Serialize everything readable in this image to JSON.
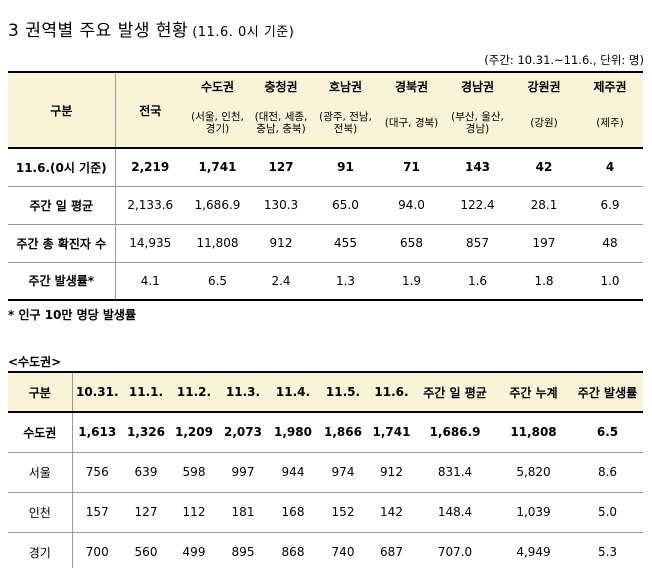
{
  "title": {
    "main": "3 권역별 주요 발생 현황",
    "sub": "(11.6. 0시 기준)"
  },
  "unit_note": "(주간: 10.31.~11.6., 단위: 명)",
  "table1": {
    "corner": "구분",
    "headers": [
      "전국",
      "수도권",
      "충청권",
      "호남권",
      "경북권",
      "경남권",
      "강원권",
      "제주권"
    ],
    "subheaders": [
      "",
      "(서울, 인천, 경기)",
      "(대전, 세종, 충남, 충북)",
      "(광주, 전남, 전북)",
      "(대구, 경북)",
      "(부산, 울산, 경남)",
      "(강원)",
      "(제주)"
    ],
    "rows": [
      {
        "label": "11.6.(0시 기준)",
        "values": [
          "2,219",
          "1,741",
          "127",
          "91",
          "71",
          "143",
          "42",
          "4"
        ]
      },
      {
        "label": "주간 일 평균",
        "values": [
          "2,133.6",
          "1,686.9",
          "130.3",
          "65.0",
          "94.0",
          "122.4",
          "28.1",
          "6.9"
        ]
      },
      {
        "label": "주간 총 확진자 수",
        "values": [
          "14,935",
          "11,808",
          "912",
          "455",
          "658",
          "857",
          "197",
          "48"
        ]
      },
      {
        "label": "주간 발생률*",
        "values": [
          "4.1",
          "6.5",
          "2.4",
          "1.3",
          "1.9",
          "1.6",
          "1.8",
          "1.0"
        ]
      }
    ]
  },
  "footnote": "* 인구 10만 명당 발생률",
  "section_label": "<수도권>",
  "table2": {
    "headers": [
      "구분",
      "10.31.",
      "11.1.",
      "11.2.",
      "11.3.",
      "11.4.",
      "11.5.",
      "11.6.",
      "주간 일 평균",
      "주간 누계",
      "주간 발생률"
    ],
    "rows": [
      {
        "label": "수도권",
        "values": [
          "1,613",
          "1,326",
          "1,209",
          "2,073",
          "1,980",
          "1,866",
          "1,741",
          "1,686.9",
          "11,808",
          "6.5"
        ]
      },
      {
        "label": "서울",
        "values": [
          "756",
          "639",
          "598",
          "997",
          "944",
          "974",
          "912",
          "831.4",
          "5,820",
          "8.6"
        ]
      },
      {
        "label": "인천",
        "values": [
          "157",
          "127",
          "112",
          "181",
          "168",
          "152",
          "142",
          "148.4",
          "1,039",
          "5.0"
        ]
      },
      {
        "label": "경기",
        "values": [
          "700",
          "560",
          "499",
          "895",
          "868",
          "740",
          "687",
          "707.0",
          "4,949",
          "5.3"
        ]
      }
    ]
  }
}
